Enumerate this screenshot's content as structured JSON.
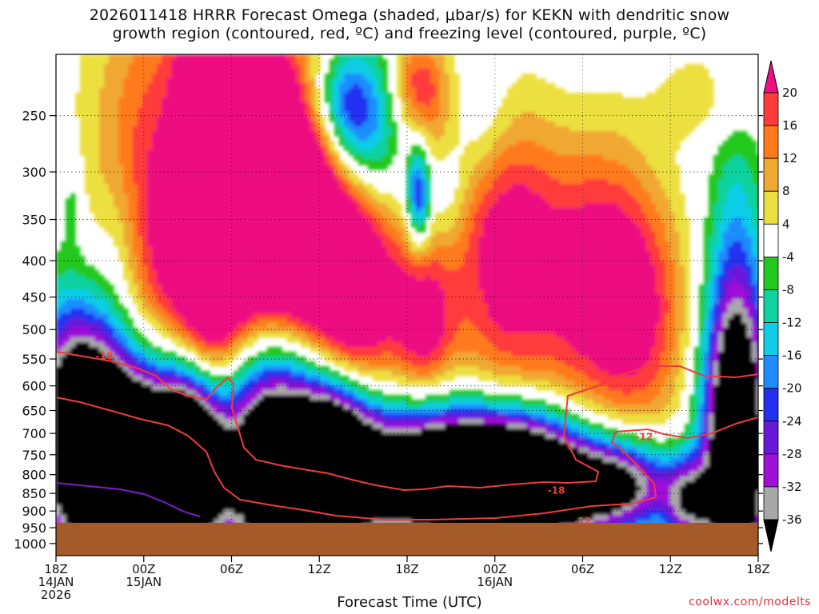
{
  "chart_data": {
    "type": "heatmap",
    "title_lines": [
      "2026011418 HRRR Forecast Omega (shaded, μbar/s) for KEKN with dendritic snow",
      "growth region (contoured, red, ºC) and freezing level (contoured, purple, ºC)"
    ],
    "xlabel": "Forecast Time (UTC)",
    "credit": "coolwx.com/modelts",
    "y_axis": {
      "unit": "hPa",
      "scale": "log-pressure",
      "range": [
        1040,
        205
      ],
      "ticks": [
        250,
        300,
        350,
        400,
        450,
        500,
        550,
        600,
        650,
        700,
        750,
        800,
        850,
        900,
        950,
        1000
      ]
    },
    "x_axis": {
      "range_hours": [
        0,
        48
      ],
      "ticks": [
        {
          "hour": 0,
          "lines": [
            "18Z",
            "14JAN",
            "2026"
          ]
        },
        {
          "hour": 6,
          "lines": [
            "00Z",
            "15JAN"
          ]
        },
        {
          "hour": 12,
          "lines": [
            "06Z"
          ]
        },
        {
          "hour": 18,
          "lines": [
            "12Z"
          ]
        },
        {
          "hour": 24,
          "lines": [
            "18Z"
          ]
        },
        {
          "hour": 30,
          "lines": [
            "00Z",
            "16JAN"
          ]
        },
        {
          "hour": 36,
          "lines": [
            "06Z"
          ]
        },
        {
          "hour": 42,
          "lines": [
            "12Z"
          ]
        },
        {
          "hour": 48,
          "lines": [
            "18Z"
          ]
        }
      ]
    },
    "colorbar": {
      "labels": [
        20,
        16,
        12,
        8,
        4,
        -4,
        -8,
        -12,
        -16,
        -20,
        -24,
        -28,
        -32,
        -36
      ],
      "bins": [
        {
          "from": 20,
          "to": 16,
          "color": "#ff3b3b"
        },
        {
          "from": 16,
          "to": 12,
          "color": "#ff7a1a"
        },
        {
          "from": 12,
          "to": 8,
          "color": "#f0a830"
        },
        {
          "from": 8,
          "to": 4,
          "color": "#ece040"
        },
        {
          "from": 4,
          "to": -4,
          "color": "#ffffff"
        },
        {
          "from": -4,
          "to": -8,
          "color": "#22c81e"
        },
        {
          "from": -8,
          "to": -12,
          "color": "#0fd2a0"
        },
        {
          "from": -12,
          "to": -16,
          "color": "#10cce8"
        },
        {
          "from": -16,
          "to": -20,
          "color": "#1e8cff"
        },
        {
          "from": -20,
          "to": -24,
          "color": "#2430f0"
        },
        {
          "from": -24,
          "to": -28,
          "color": "#6a18d8"
        },
        {
          "from": -28,
          "to": -32,
          "color": "#a010d8"
        },
        {
          "from": -32,
          "to": -36,
          "color": "#a8a8a8"
        }
      ],
      "above_color": "#ee1080",
      "below_color": "#000000"
    },
    "ground": {
      "top_hPa": 935,
      "color": "#a55a2a"
    },
    "contour_labels": [
      {
        "text": "-18",
        "hour": 3.3,
        "hPa": 545
      },
      {
        "text": "-18",
        "hour": 34.2,
        "hPa": 842
      },
      {
        "text": "-12",
        "hour": 40.2,
        "hPa": 708
      },
      {
        "text": "-12",
        "hour": 36.0,
        "hPa": 930
      }
    ]
  }
}
